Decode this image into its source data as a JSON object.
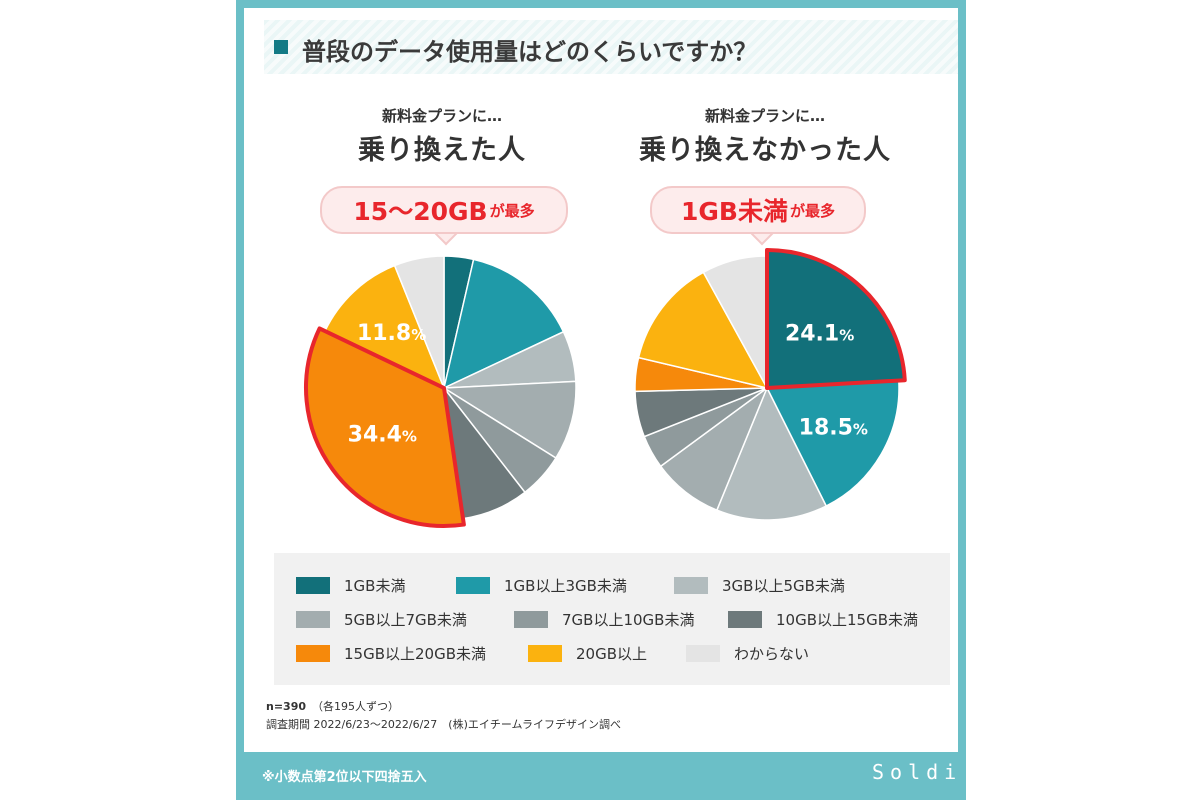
{
  "header": {
    "title": "普段のデータ使用量はどのくらいですか？"
  },
  "colors": {
    "accent": "#6bbfc7",
    "highlight_border": "#e8262c",
    "categories": [
      "#12707a",
      "#1f9aa8",
      "#b2bcbe",
      "#a3adaf",
      "#8f9a9c",
      "#6d797b",
      "#f6890b",
      "#fbb20f",
      "#e4e4e4"
    ]
  },
  "chart_data": [
    {
      "type": "pie",
      "subtitle": "新料金プランに…",
      "title": "乗り換えた人",
      "callout": {
        "main": "15〜20GB",
        "suffix": "が最多"
      },
      "categories": [
        "1GB未満",
        "1GB以上3GB未満",
        "3GB以上5GB未満",
        "5GB以上7GB未満",
        "7GB以上10GB未満",
        "10GB以上15GB未満",
        "15GB以上20GB未満",
        "20GB以上",
        "わからない"
      ],
      "values": [
        3.6,
        14.4,
        6.2,
        9.7,
        5.6,
        8.2,
        34.4,
        11.8,
        6.1
      ],
      "labels": [
        {
          "category": "15GB以上20GB未満",
          "value": "34.4",
          "unit": "%"
        },
        {
          "category": "20GB以上",
          "value": "11.8",
          "unit": "%"
        }
      ],
      "highlight": "15GB以上20GB未満"
    },
    {
      "type": "pie",
      "subtitle": "新料金プランに…",
      "title": "乗り換えなかった人",
      "callout": {
        "main": "1GB未満",
        "suffix": "が最多"
      },
      "categories": [
        "1GB未満",
        "1GB以上3GB未満",
        "3GB以上5GB未満",
        "5GB以上7GB未満",
        "7GB以上10GB未満",
        "10GB以上15GB未満",
        "15GB以上20GB未満",
        "20GB以上",
        "わからない"
      ],
      "values": [
        24.1,
        18.5,
        13.6,
        8.7,
        4.1,
        5.6,
        4.1,
        13.3,
        8.0
      ],
      "labels": [
        {
          "category": "1GB未満",
          "value": "24.1",
          "unit": "%"
        },
        {
          "category": "1GB以上3GB未満",
          "value": "18.5",
          "unit": "%"
        }
      ],
      "highlight": "1GB未満"
    }
  ],
  "legend": {
    "items": [
      "1GB未満",
      "1GB以上3GB未満",
      "3GB以上5GB未満",
      "5GB以上7GB未満",
      "7GB以上10GB未満",
      "10GB以上15GB未満",
      "15GB以上20GB未満",
      "20GB以上",
      "わからない"
    ]
  },
  "notes": {
    "sample": "n=390",
    "sample_detail": "（各195人ずつ）",
    "period": "調査期間 2022/6/23〜2022/6/27　(株)エイチームライフデザイン調べ"
  },
  "footer": {
    "rounding_note": "※小数点第2位以下四捨五入",
    "logo": "Soldi"
  }
}
